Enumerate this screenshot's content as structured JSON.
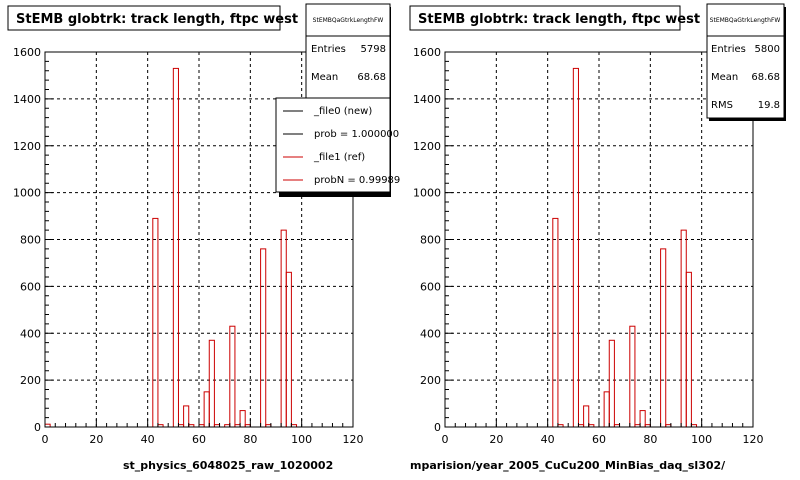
{
  "chart_data": [
    {
      "type": "histogram",
      "title": "StEMB globtrk: track length, ftpc west",
      "stats_box": {
        "name": "StEMBQaGtrkLengthFW",
        "entries_label": "Entries",
        "entries": "5798",
        "mean_label": "Mean",
        "mean": "68.68"
      },
      "legend": {
        "placement": "top-right",
        "entries": [
          "_file0 (new)",
          "prob = 1.000000",
          "_file1 (ref)",
          "probN = 0.99989"
        ],
        "colors": [
          "#000000",
          "#000000",
          "#cc0000",
          "#cc0000"
        ]
      },
      "xlabel": "st_physics_6048025_raw_1020002",
      "xlim": [
        0,
        120
      ],
      "ylim": [
        0,
        1600
      ],
      "x_ticks": [
        0,
        20,
        40,
        60,
        80,
        100,
        120
      ],
      "y_ticks": [
        0,
        200,
        400,
        600,
        800,
        1000,
        1200,
        1400,
        1600
      ],
      "grid": true,
      "bin_width": 2,
      "series": [
        {
          "color": "#cc0000",
          "bins": [
            [
              0,
              12
            ],
            [
              42,
              890
            ],
            [
              44,
              10
            ],
            [
              50,
              1530
            ],
            [
              52,
              10
            ],
            [
              54,
              90
            ],
            [
              56,
              10
            ],
            [
              60,
              10
            ],
            [
              62,
              150
            ],
            [
              64,
              370
            ],
            [
              66,
              10
            ],
            [
              70,
              10
            ],
            [
              72,
              430
            ],
            [
              74,
              10
            ],
            [
              76,
              70
            ],
            [
              78,
              10
            ],
            [
              84,
              760
            ],
            [
              86,
              10
            ],
            [
              92,
              840
            ],
            [
              94,
              660
            ],
            [
              96,
              10
            ]
          ]
        }
      ]
    },
    {
      "type": "histogram",
      "title": "StEMB globtrk: track length, ftpc west",
      "stats_box": {
        "name": "StEMBQaGtrkLengthFW",
        "entries_label": "Entries",
        "entries": "5800",
        "mean_label": "Mean",
        "mean": "68.68",
        "rms_label": "RMS",
        "rms": "19.8"
      },
      "xlabel": "mparision/year_2005_CuCu200_MinBias_daq_sl302/",
      "xlim": [
        0,
        120
      ],
      "ylim": [
        0,
        1600
      ],
      "x_ticks": [
        0,
        20,
        40,
        60,
        80,
        100,
        120
      ],
      "y_ticks": [
        0,
        200,
        400,
        600,
        800,
        1000,
        1200,
        1400,
        1600
      ],
      "grid": true,
      "bin_width": 2,
      "series": [
        {
          "color": "#cc0000",
          "bins": [
            [
              42,
              890
            ],
            [
              44,
              10
            ],
            [
              50,
              1530
            ],
            [
              52,
              10
            ],
            [
              54,
              90
            ],
            [
              56,
              10
            ],
            [
              62,
              150
            ],
            [
              64,
              370
            ],
            [
              66,
              10
            ],
            [
              72,
              430
            ],
            [
              74,
              10
            ],
            [
              76,
              70
            ],
            [
              78,
              10
            ],
            [
              84,
              760
            ],
            [
              86,
              10
            ],
            [
              92,
              840
            ],
            [
              94,
              660
            ],
            [
              96,
              10
            ]
          ]
        }
      ]
    }
  ]
}
